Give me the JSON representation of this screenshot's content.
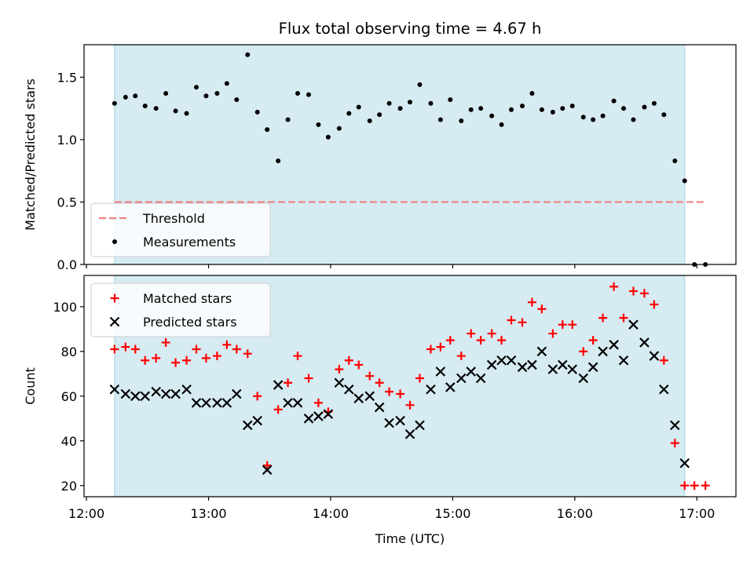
{
  "figure": {
    "title": "Flux total observing time = 4.67 h",
    "xlabel": "Time (UTC)",
    "x_ticks": [
      {
        "h": 12.0,
        "label": "12:00"
      },
      {
        "h": 13.0,
        "label": "13:00"
      },
      {
        "h": 14.0,
        "label": "14:00"
      },
      {
        "h": 15.0,
        "label": "15:00"
      },
      {
        "h": 16.0,
        "label": "16:00"
      },
      {
        "h": 17.0,
        "label": "17:00"
      }
    ],
    "xlim": [
      11.98,
      17.32
    ],
    "observing_span": [
      12.23,
      16.9
    ],
    "span_color": "#add8e6"
  },
  "chart_data": [
    {
      "type": "scatter",
      "ylabel": "Matched/Predicted stars",
      "ylim": [
        0,
        1.76
      ],
      "y_ticks": [
        {
          "v": 0.0,
          "label": "0.0"
        },
        {
          "v": 0.5,
          "label": "0.5"
        },
        {
          "v": 1.0,
          "label": "1.0"
        },
        {
          "v": 1.5,
          "label": "1.5"
        }
      ],
      "legend_position": "lower-left",
      "threshold": {
        "name": "Threshold",
        "value": 0.5,
        "x_range": [
          12.23,
          17.07
        ],
        "color": "#f08080"
      },
      "series": [
        {
          "name": "Measurements",
          "color": "#000000",
          "points": [
            [
              12.23,
              1.29
            ],
            [
              12.32,
              1.34
            ],
            [
              12.4,
              1.35
            ],
            [
              12.48,
              1.27
            ],
            [
              12.57,
              1.25
            ],
            [
              12.65,
              1.37
            ],
            [
              12.73,
              1.23
            ],
            [
              12.82,
              1.21
            ],
            [
              12.9,
              1.42
            ],
            [
              12.98,
              1.35
            ],
            [
              13.07,
              1.37
            ],
            [
              13.15,
              1.45
            ],
            [
              13.23,
              1.32
            ],
            [
              13.32,
              1.68
            ],
            [
              13.4,
              1.22
            ],
            [
              13.48,
              1.08
            ],
            [
              13.57,
              0.83
            ],
            [
              13.65,
              1.16
            ],
            [
              13.73,
              1.37
            ],
            [
              13.82,
              1.36
            ],
            [
              13.9,
              1.12
            ],
            [
              13.98,
              1.02
            ],
            [
              14.07,
              1.09
            ],
            [
              14.15,
              1.21
            ],
            [
              14.23,
              1.26
            ],
            [
              14.32,
              1.15
            ],
            [
              14.4,
              1.2
            ],
            [
              14.48,
              1.29
            ],
            [
              14.57,
              1.25
            ],
            [
              14.65,
              1.3
            ],
            [
              14.73,
              1.44
            ],
            [
              14.82,
              1.29
            ],
            [
              14.9,
              1.16
            ],
            [
              14.98,
              1.32
            ],
            [
              15.07,
              1.15
            ],
            [
              15.15,
              1.24
            ],
            [
              15.23,
              1.25
            ],
            [
              15.32,
              1.19
            ],
            [
              15.4,
              1.12
            ],
            [
              15.48,
              1.24
            ],
            [
              15.57,
              1.27
            ],
            [
              15.65,
              1.37
            ],
            [
              15.73,
              1.24
            ],
            [
              15.82,
              1.22
            ],
            [
              15.9,
              1.25
            ],
            [
              15.98,
              1.27
            ],
            [
              16.07,
              1.18
            ],
            [
              16.15,
              1.16
            ],
            [
              16.23,
              1.19
            ],
            [
              16.32,
              1.31
            ],
            [
              16.4,
              1.25
            ],
            [
              16.48,
              1.16
            ],
            [
              16.57,
              1.26
            ],
            [
              16.65,
              1.29
            ],
            [
              16.73,
              1.2
            ],
            [
              16.82,
              0.83
            ],
            [
              16.9,
              0.67
            ],
            [
              16.98,
              0.0
            ],
            [
              17.07,
              0.0
            ]
          ]
        }
      ]
    },
    {
      "type": "scatter",
      "ylabel": "Count",
      "ylim": [
        15,
        114
      ],
      "y_ticks": [
        {
          "v": 20,
          "label": "20"
        },
        {
          "v": 40,
          "label": "40"
        },
        {
          "v": 60,
          "label": "60"
        },
        {
          "v": 80,
          "label": "80"
        },
        {
          "v": 100,
          "label": "100"
        }
      ],
      "legend_position": "upper-left",
      "series": [
        {
          "name": "Matched stars",
          "marker": "plus",
          "color": "#ff0000",
          "points": [
            [
              12.23,
              81
            ],
            [
              12.32,
              82
            ],
            [
              12.4,
              81
            ],
            [
              12.48,
              76
            ],
            [
              12.57,
              77
            ],
            [
              12.65,
              84
            ],
            [
              12.73,
              75
            ],
            [
              12.82,
              76
            ],
            [
              12.9,
              81
            ],
            [
              12.98,
              77
            ],
            [
              13.07,
              78
            ],
            [
              13.15,
              83
            ],
            [
              13.23,
              81
            ],
            [
              13.32,
              79
            ],
            [
              13.4,
              60
            ],
            [
              13.48,
              29
            ],
            [
              13.57,
              54
            ],
            [
              13.65,
              66
            ],
            [
              13.73,
              78
            ],
            [
              13.82,
              68
            ],
            [
              13.9,
              57
            ],
            [
              13.98,
              53
            ],
            [
              14.07,
              72
            ],
            [
              14.15,
              76
            ],
            [
              14.23,
              74
            ],
            [
              14.32,
              69
            ],
            [
              14.4,
              66
            ],
            [
              14.48,
              62
            ],
            [
              14.57,
              61
            ],
            [
              14.65,
              56
            ],
            [
              14.73,
              68
            ],
            [
              14.82,
              81
            ],
            [
              14.9,
              82
            ],
            [
              14.98,
              85
            ],
            [
              15.07,
              78
            ],
            [
              15.15,
              88
            ],
            [
              15.23,
              85
            ],
            [
              15.32,
              88
            ],
            [
              15.4,
              85
            ],
            [
              15.48,
              94
            ],
            [
              15.57,
              93
            ],
            [
              15.65,
              102
            ],
            [
              15.73,
              99
            ],
            [
              15.82,
              88
            ],
            [
              15.9,
              92
            ],
            [
              15.98,
              92
            ],
            [
              16.07,
              80
            ],
            [
              16.15,
              85
            ],
            [
              16.23,
              95
            ],
            [
              16.32,
              109
            ],
            [
              16.4,
              95
            ],
            [
              16.48,
              107
            ],
            [
              16.57,
              106
            ],
            [
              16.65,
              101
            ],
            [
              16.73,
              76
            ],
            [
              16.82,
              39
            ],
            [
              16.9,
              20
            ],
            [
              16.98,
              20
            ],
            [
              17.07,
              20
            ]
          ]
        },
        {
          "name": "Predicted stars",
          "marker": "x",
          "color": "#000000",
          "points": [
            [
              12.23,
              63
            ],
            [
              12.32,
              61
            ],
            [
              12.4,
              60
            ],
            [
              12.48,
              60
            ],
            [
              12.57,
              62
            ],
            [
              12.65,
              61
            ],
            [
              12.73,
              61
            ],
            [
              12.82,
              63
            ],
            [
              12.9,
              57
            ],
            [
              12.98,
              57
            ],
            [
              13.07,
              57
            ],
            [
              13.15,
              57
            ],
            [
              13.23,
              61
            ],
            [
              13.32,
              47
            ],
            [
              13.4,
              49
            ],
            [
              13.48,
              27
            ],
            [
              13.57,
              65
            ],
            [
              13.65,
              57
            ],
            [
              13.73,
              57
            ],
            [
              13.82,
              50
            ],
            [
              13.9,
              51
            ],
            [
              13.98,
              52
            ],
            [
              14.07,
              66
            ],
            [
              14.15,
              63
            ],
            [
              14.23,
              59
            ],
            [
              14.32,
              60
            ],
            [
              14.4,
              55
            ],
            [
              14.48,
              48
            ],
            [
              14.57,
              49
            ],
            [
              14.65,
              43
            ],
            [
              14.73,
              47
            ],
            [
              14.82,
              63
            ],
            [
              14.9,
              71
            ],
            [
              14.98,
              64
            ],
            [
              15.07,
              68
            ],
            [
              15.15,
              71
            ],
            [
              15.23,
              68
            ],
            [
              15.32,
              74
            ],
            [
              15.4,
              76
            ],
            [
              15.48,
              76
            ],
            [
              15.57,
              73
            ],
            [
              15.65,
              74
            ],
            [
              15.73,
              80
            ],
            [
              15.82,
              72
            ],
            [
              15.9,
              74
            ],
            [
              15.98,
              72
            ],
            [
              16.07,
              68
            ],
            [
              16.15,
              73
            ],
            [
              16.23,
              80
            ],
            [
              16.32,
              83
            ],
            [
              16.4,
              76
            ],
            [
              16.48,
              92
            ],
            [
              16.57,
              84
            ],
            [
              16.65,
              78
            ],
            [
              16.73,
              63
            ],
            [
              16.82,
              47
            ],
            [
              16.9,
              30
            ]
          ]
        }
      ]
    }
  ]
}
